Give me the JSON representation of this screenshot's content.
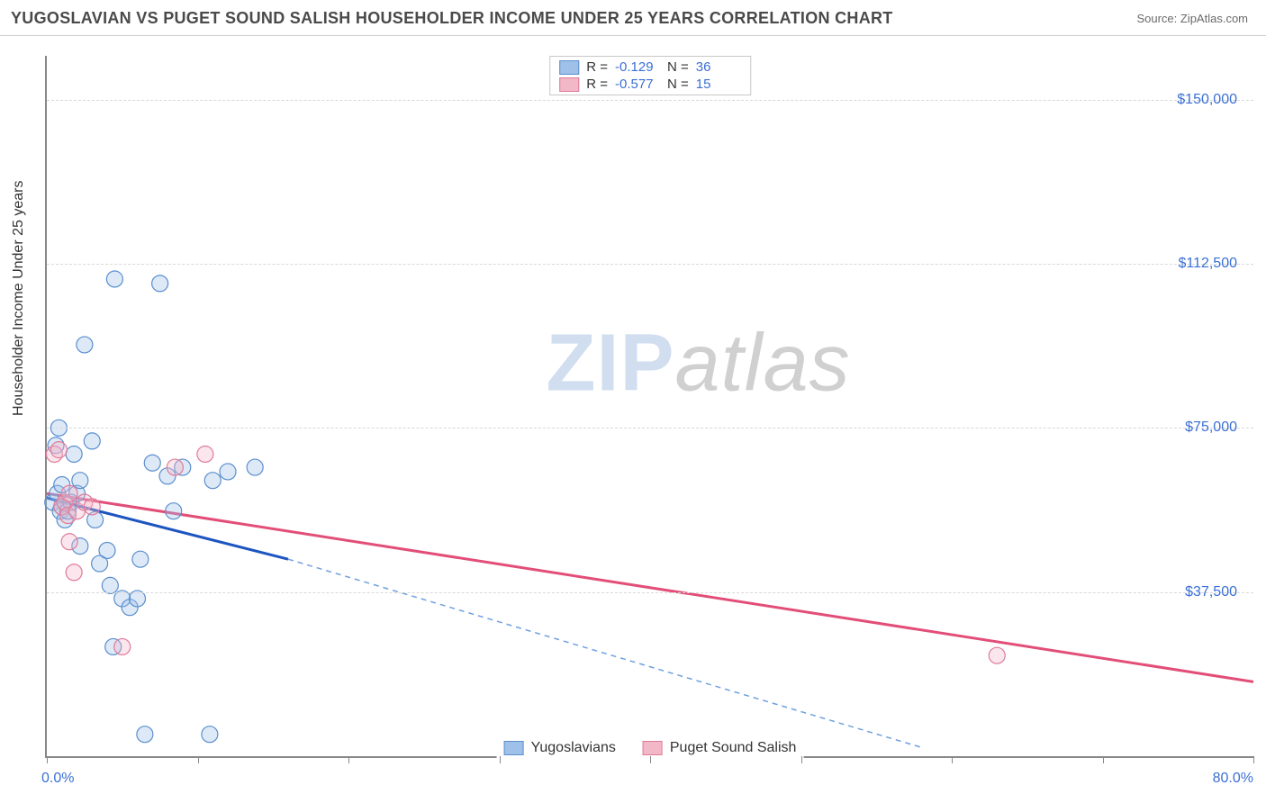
{
  "header": {
    "title": "YUGOSLAVIAN VS PUGET SOUND SALISH HOUSEHOLDER INCOME UNDER 25 YEARS CORRELATION CHART",
    "source": "Source: ZipAtlas.com"
  },
  "watermark": {
    "zip": "ZIP",
    "atlas": "atlas"
  },
  "chart": {
    "type": "scatter",
    "xlim": [
      0,
      80
    ],
    "ylim": [
      0,
      160000
    ],
    "x_axis": {
      "min_label": "0.0%",
      "max_label": "80.0%",
      "tick_step": 10
    },
    "y_axis": {
      "label": "Householder Income Under 25 years",
      "ticks": [
        37500,
        75000,
        112500,
        150000
      ],
      "tick_labels": [
        "$37,500",
        "$75,000",
        "$112,500",
        "$150,000"
      ]
    },
    "background_color": "#ffffff",
    "grid_color": "#d8d8d8",
    "axis_color": "#888888",
    "marker_radius": 9,
    "marker_fill_opacity": 0.35,
    "marker_stroke_width": 1.2,
    "series": [
      {
        "name": "Yugoslavians",
        "color_fill": "#9fc0e8",
        "color_stroke": "#5a8fce",
        "R": "-0.129",
        "N": "36",
        "trend": {
          "x1": 0,
          "y1": 59000,
          "x2": 16,
          "y2": 45000,
          "solid_color": "#1d55c0",
          "dash_color": "#6fa0e0",
          "dash_to_x": 58,
          "dash_to_y": 2000
        },
        "points": [
          [
            0.4,
            58000
          ],
          [
            0.6,
            71000
          ],
          [
            0.7,
            60000
          ],
          [
            0.8,
            75000
          ],
          [
            0.9,
            56000
          ],
          [
            1.0,
            62000
          ],
          [
            1.0,
            57000
          ],
          [
            1.2,
            54000
          ],
          [
            1.4,
            56000
          ],
          [
            1.6,
            58000
          ],
          [
            1.8,
            69000
          ],
          [
            2.0,
            60000
          ],
          [
            2.2,
            63000
          ],
          [
            2.2,
            48000
          ],
          [
            2.5,
            94000
          ],
          [
            3.0,
            72000
          ],
          [
            3.2,
            54000
          ],
          [
            3.5,
            44000
          ],
          [
            4.0,
            47000
          ],
          [
            4.2,
            39000
          ],
          [
            4.4,
            25000
          ],
          [
            4.5,
            109000
          ],
          [
            5.0,
            36000
          ],
          [
            5.5,
            34000
          ],
          [
            6.0,
            36000
          ],
          [
            6.2,
            45000
          ],
          [
            6.5,
            5000
          ],
          [
            7.0,
            67000
          ],
          [
            7.5,
            108000
          ],
          [
            8.0,
            64000
          ],
          [
            8.4,
            56000
          ],
          [
            9.0,
            66000
          ],
          [
            10.8,
            5000
          ],
          [
            11.0,
            63000
          ],
          [
            12.0,
            65000
          ],
          [
            13.8,
            66000
          ]
        ]
      },
      {
        "name": "Puget Sound Salish",
        "color_fill": "#f2b8c8",
        "color_stroke": "#e07b9a",
        "R": "-0.577",
        "N": "15",
        "trend": {
          "x1": 0,
          "y1": 60000,
          "x2": 80,
          "y2": 17000,
          "solid_color": "#e24e78"
        },
        "points": [
          [
            0.5,
            69000
          ],
          [
            0.8,
            70000
          ],
          [
            1.0,
            57000
          ],
          [
            1.2,
            58000
          ],
          [
            1.4,
            55000
          ],
          [
            1.5,
            60000
          ],
          [
            1.5,
            49000
          ],
          [
            1.8,
            42000
          ],
          [
            2.0,
            56000
          ],
          [
            2.5,
            58000
          ],
          [
            3.0,
            57000
          ],
          [
            5.0,
            25000
          ],
          [
            8.5,
            66000
          ],
          [
            10.5,
            69000
          ],
          [
            63.0,
            23000
          ]
        ]
      }
    ],
    "legend_top": {
      "rows": [
        {
          "swatch_fill": "#9fc0e8",
          "swatch_stroke": "#5a8fce",
          "r_label": "R =",
          "r_val": "-0.129",
          "n_label": "N =",
          "n_val": "36"
        },
        {
          "swatch_fill": "#f2b8c8",
          "swatch_stroke": "#e07b9a",
          "r_label": "R =",
          "r_val": "-0.577",
          "n_label": "N =",
          "n_val": "15"
        }
      ]
    },
    "legend_bottom": {
      "items": [
        {
          "swatch_fill": "#9fc0e8",
          "swatch_stroke": "#5a8fce",
          "label": "Yugoslavians"
        },
        {
          "swatch_fill": "#f2b8c8",
          "swatch_stroke": "#e07b9a",
          "label": "Puget Sound Salish"
        }
      ]
    }
  }
}
